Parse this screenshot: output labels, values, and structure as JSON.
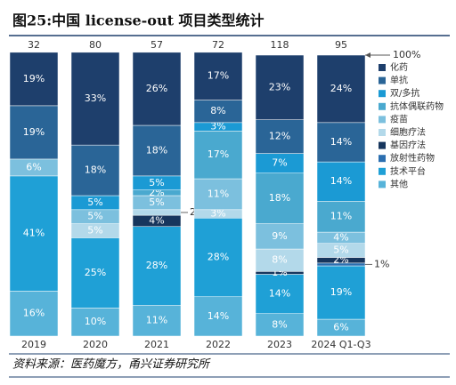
{
  "chart_data": {
    "type": "stacked_bar_percent",
    "title": "图25:中国 license-out 项目类型统计",
    "source": "资料来源：医药魔方，甬兴证券研究所",
    "categories": [
      "2019",
      "2020",
      "2021",
      "2022",
      "2023",
      "2024 Q1-Q3"
    ],
    "totals": [
      32,
      80,
      57,
      72,
      118,
      95
    ],
    "ylim": [
      0,
      100
    ],
    "yticks": [
      {
        "value": 100,
        "label": "100%"
      }
    ],
    "series": [
      {
        "name": "化药",
        "color": "#1e3f6c",
        "values": [
          19,
          33,
          26,
          17,
          23,
          24
        ],
        "value_labels": [
          "19%",
          "33%",
          "26%",
          "17%",
          "23%",
          "24%"
        ]
      },
      {
        "name": "单抗",
        "color": "#2a6597",
        "values": [
          19,
          18,
          18,
          8,
          12,
          14
        ],
        "value_labels": [
          "19%",
          "18%",
          "18%",
          "8%",
          "12%",
          "14%"
        ]
      },
      {
        "name": "双/多抗",
        "color": "#1b9ad4",
        "values": [
          0,
          5,
          5,
          3,
          7,
          14
        ],
        "value_labels": [
          null,
          "5%",
          "5%",
          "3%",
          "7%",
          "14%"
        ]
      },
      {
        "name": "抗体偶联药物",
        "color": "#4aa9cf",
        "values": [
          0,
          0,
          2,
          17,
          18,
          11
        ],
        "value_labels": [
          null,
          null,
          "2%",
          "17%",
          "18%",
          "11%"
        ]
      },
      {
        "name": "疫苗",
        "color": "#7cc0de",
        "values": [
          6,
          5,
          5,
          11,
          9,
          4
        ],
        "value_labels": [
          "6%",
          "5%",
          "5%",
          "11%",
          "9%",
          "4%"
        ]
      },
      {
        "name": "细胞疗法",
        "color": "#b3d9ea",
        "values": [
          0,
          5,
          2,
          3,
          8,
          5
        ],
        "value_labels": [
          null,
          "5%",
          "2%",
          "3%",
          "8%",
          "5%"
        ]
      },
      {
        "name": "基因疗法",
        "color": "#17365d",
        "values": [
          0,
          0,
          4,
          0,
          1,
          2
        ],
        "value_labels": [
          null,
          null,
          "4%",
          null,
          "1%",
          "2%"
        ]
      },
      {
        "name": "放射性药物",
        "color": "#2c6fb0",
        "values": [
          0,
          0,
          0,
          0,
          0,
          1
        ],
        "value_labels": [
          null,
          null,
          null,
          null,
          null,
          "1%"
        ]
      },
      {
        "name": "技术平台",
        "color": "#1fa0d6",
        "values": [
          41,
          25,
          28,
          28,
          14,
          19
        ],
        "value_labels": [
          "41%",
          "25%",
          "28%",
          "28%",
          "14%",
          "19%"
        ]
      },
      {
        "name": "其他",
        "color": "#57b3d9",
        "values": [
          16,
          10,
          11,
          14,
          8,
          6
        ],
        "value_labels": [
          "16%",
          "10%",
          "11%",
          "14%",
          "8%",
          "6%"
        ]
      }
    ]
  }
}
